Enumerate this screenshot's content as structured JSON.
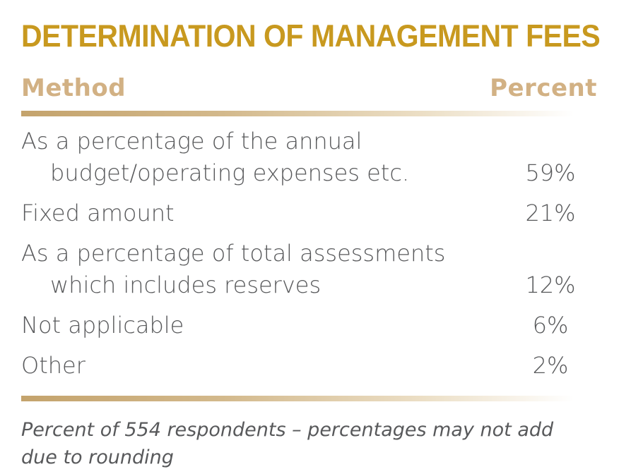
{
  "title": "DETERMINATION OF MANAGEMENT FEES",
  "columns": {
    "method": "Method",
    "percent": "Percent"
  },
  "table": {
    "rows": [
      {
        "lines": [
          "As a percentage of the annual",
          "budget/operating expenses etc."
        ],
        "percent": "59%"
      },
      {
        "lines": [
          "Fixed amount"
        ],
        "percent": "21%"
      },
      {
        "lines": [
          "As a percentage of total assessments",
          "which includes reserves"
        ],
        "percent": "12%"
      },
      {
        "lines": [
          "Not applicable"
        ],
        "percent": "6%"
      },
      {
        "lines": [
          "Other"
        ],
        "percent": "2%"
      }
    ]
  },
  "footnote": {
    "lines": [
      "Percent of 554 respondents – percentages may not add",
      "due to rounding"
    ]
  },
  "colors": {
    "title_gold": "#c8991f",
    "header_tan": "#d2b184",
    "rule_gold": "#c4a36c",
    "text_gray": "#58595b",
    "background": "#ffffff"
  },
  "chart_data": {
    "type": "table",
    "title": "DETERMINATION OF MANAGEMENT FEES",
    "columns": [
      "Method",
      "Percent"
    ],
    "categories": [
      "As a percentage of the annual budget/operating expenses etc.",
      "Fixed amount",
      "As a percentage of total assessments which includes reserves",
      "Not applicable",
      "Other"
    ],
    "values": [
      59,
      21,
      12,
      6,
      2
    ],
    "unit": "%",
    "sample_size": 554,
    "note": "Percent of 554 respondents – percentages may not add due to rounding"
  }
}
